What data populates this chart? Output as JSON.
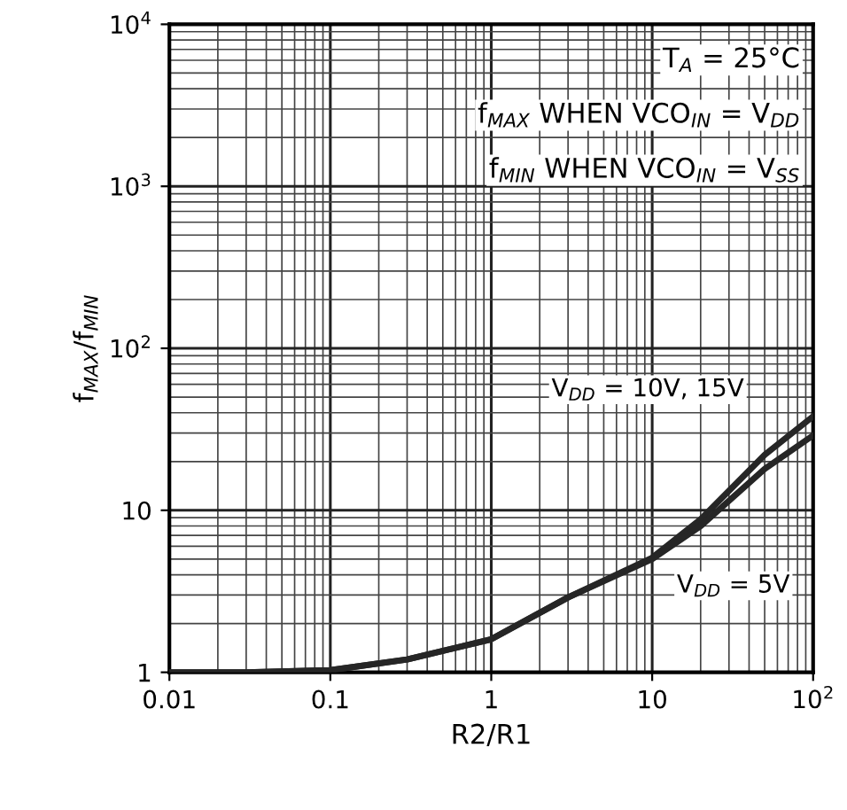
{
  "chart_data": {
    "type": "line",
    "xlabel": "R2/R1",
    "ylabel": "f$_{MAX}$/f$_{MIN}$",
    "log": "xy",
    "xlim": [
      0.01,
      100
    ],
    "ylim": [
      1,
      10000
    ],
    "xticks": [
      0.01,
      0.1,
      1,
      10,
      {
        "value": 100,
        "label": "10$^{2}$"
      }
    ],
    "yticks": [
      1,
      10,
      {
        "value": 100,
        "label": "10$^{2}$"
      },
      {
        "value": 1000,
        "label": "10$^{3}$"
      },
      {
        "value": 10000,
        "label": "10$^{4}$"
      }
    ],
    "grid": true,
    "line_style": "solid",
    "marker": "none",
    "series": [
      {
        "color": "#262626",
        "x": [
          0.01,
          0.03,
          0.1,
          0.3,
          1,
          3,
          10,
          20,
          50,
          100
        ],
        "values": [
          1,
          1,
          1.03,
          1.2,
          1.6,
          2.9,
          5.1,
          8.8,
          22,
          38
        ]
      },
      {
        "color": "#262626",
        "x": [
          0.01,
          0.03,
          0.1,
          0.3,
          1,
          3,
          10,
          20,
          50,
          100
        ],
        "values": [
          1,
          1,
          1.03,
          1.2,
          1.6,
          2.9,
          5,
          8,
          18,
          29
        ]
      }
    ],
    "annotations": [
      {
        "text": "T$_{A}$ = 25°C"
      },
      {
        "text": "f$_{MAX}$ WHEN VCO$_{IN}$ = V$_{DD}$"
      },
      {
        "text": "f$_{MIN}$ WHEN VCO$_{IN}$ = V$_{SS}$"
      },
      {
        "text": "V$_{DD}$ = 10V, 15V",
        "x": 100,
        "y": 38
      },
      {
        "text": "V$_{DD}$ = 5V",
        "x": 10,
        "y": 5
      }
    ]
  }
}
